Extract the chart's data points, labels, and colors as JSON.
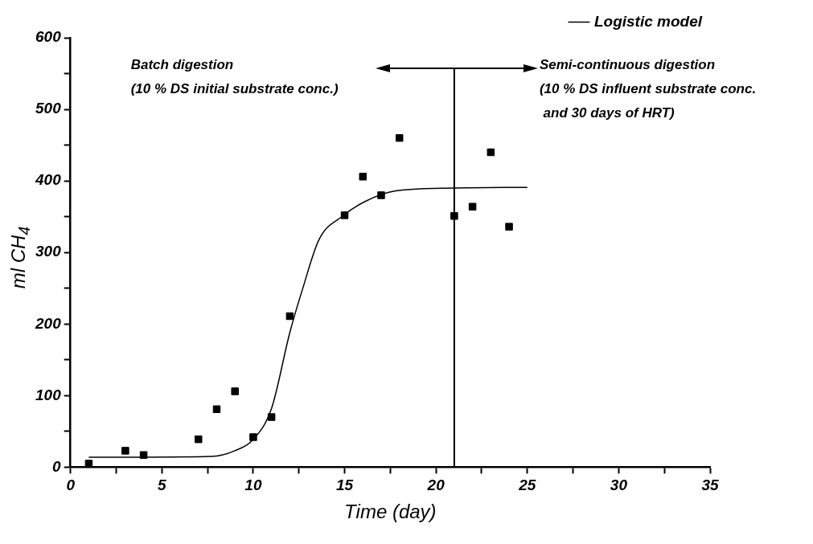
{
  "chart_data": {
    "type": "scatter",
    "xlabel": "Time (day)",
    "ylabel": "ml CH$_{4}$",
    "x": [
      1,
      3,
      4,
      7,
      8,
      9,
      10,
      11,
      12,
      15,
      16,
      17,
      18,
      21,
      22,
      23,
      24
    ],
    "marker": "square",
    "series": [
      {
        "color": "#000000",
        "values": [
          5,
          23,
          17,
          39,
          81,
          106,
          42,
          70,
          211,
          352,
          406,
          380,
          460,
          351,
          364,
          440,
          336
        ]
      },
      {
        "type": "line",
        "name": "Logistic model",
        "color": "#000000",
        "marker": "none",
        "x": [
          1,
          7.7,
          9,
          10,
          11,
          12,
          12.7,
          13.6,
          14.9,
          16.1,
          17.8,
          21,
          25
        ],
        "values": [
          14,
          15,
          23,
          39,
          82,
          188,
          249,
          318,
          351,
          371,
          386,
          390,
          391
        ]
      }
    ],
    "xlim": [
      0,
      35
    ],
    "xticks": [
      0,
      {
        "value": 2.5,
        "label": null
      },
      5,
      {
        "value": 7.5,
        "label": null
      },
      10,
      {
        "value": 12.5,
        "label": null
      },
      15,
      {
        "value": 17.5,
        "label": null
      },
      20,
      {
        "value": 22.5,
        "label": null
      },
      25,
      {
        "value": 27.5,
        "label": null
      },
      30,
      {
        "value": 32.5,
        "label": null
      },
      35
    ],
    "ylim": [
      0,
      600
    ],
    "yticks": [
      0,
      {
        "value": 50,
        "label": null
      },
      100,
      {
        "value": 150,
        "label": null
      },
      200,
      {
        "value": 250,
        "label": null
      },
      300,
      {
        "value": 350,
        "label": null
      },
      400,
      {
        "value": 450,
        "label": null
      },
      500,
      {
        "value": 550,
        "label": null
      },
      600
    ],
    "ref_lines": [
      {
        "axis": "x",
        "value": 21,
        "color": "#000000"
      }
    ],
    "annotations": [
      "Batch digestion\n(10 % DS initial substrate conc.)",
      "Semi-continuous digestion\n(10 % DS influent substrate conc.\n and 30 days of HRT)"
    ],
    "grid": false,
    "legend": "top right"
  }
}
